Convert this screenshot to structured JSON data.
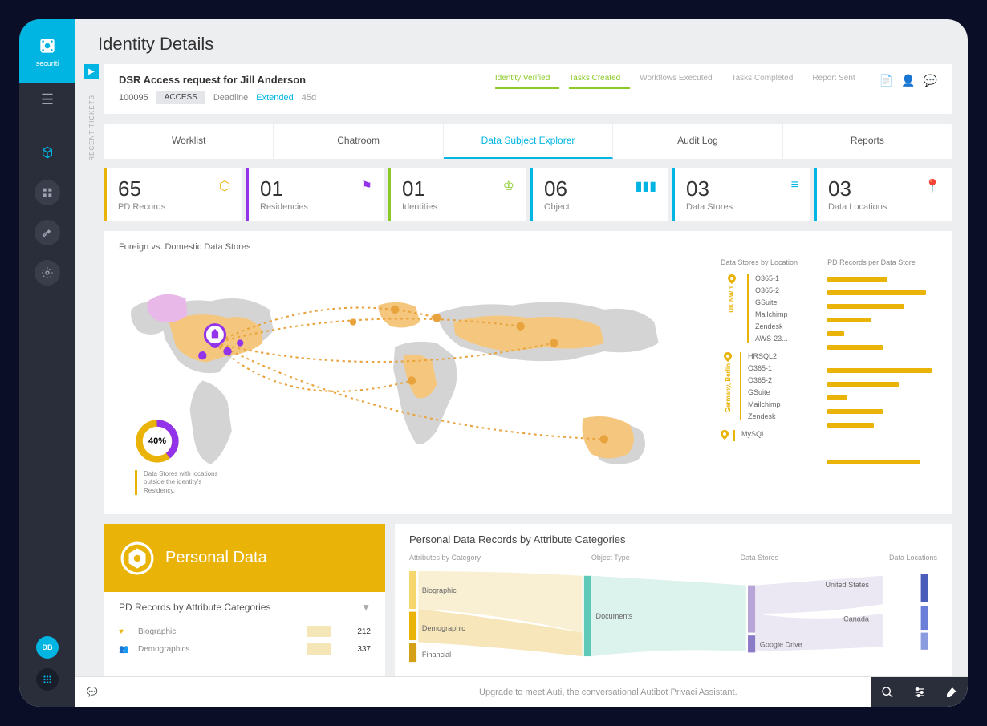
{
  "brand": {
    "name": "securiti",
    "color": "#00b5e2"
  },
  "page_title": "Identity Details",
  "sidebar": {
    "tickets_label": "RECENT TICKETS",
    "avatars": [
      {
        "initials": "DB",
        "color": "#00b5e2"
      },
      {
        "initials": "",
        "color": "#2a2d3a",
        "dots": true
      }
    ]
  },
  "header": {
    "title": "DSR Access request for Jill Anderson",
    "ticket_id": "100095",
    "badge": "ACCESS",
    "deadline_label": "Deadline",
    "deadline_status": "Extended",
    "deadline_days": "45d",
    "steps": [
      {
        "label": "Identity Verified",
        "done": true
      },
      {
        "label": "Tasks Created",
        "done": true
      },
      {
        "label": "Workflows Executed",
        "done": false
      },
      {
        "label": "Tasks Completed",
        "done": false
      },
      {
        "label": "Report Sent",
        "done": false
      }
    ]
  },
  "tabs": [
    "Worklist",
    "Chatroom",
    "Data Subject Explorer",
    "Audit Log",
    "Reports"
  ],
  "active_tab": 2,
  "stats": [
    {
      "value": "65",
      "label": "PD Records",
      "color": "#eab308",
      "icon": "⬡"
    },
    {
      "value": "01",
      "label": "Residencies",
      "color": "#9333ea",
      "icon": "⚑"
    },
    {
      "value": "01",
      "label": "Identities",
      "color": "#8ac926",
      "icon": "♔"
    },
    {
      "value": "06",
      "label": "Object",
      "color": "#00b5e2",
      "icon": "▮▮▮"
    },
    {
      "value": "03",
      "label": "Data Stores",
      "color": "#00b5e2",
      "icon": "≡"
    },
    {
      "value": "03",
      "label": "Data Locations",
      "color": "#00b5e2",
      "icon": "📍"
    }
  ],
  "map": {
    "title": "Foreign vs. Domestic Data Stores",
    "donut": {
      "percent": "40%",
      "value": 40,
      "colors": [
        "#9333ea",
        "#eab308"
      ]
    },
    "donut_caption": "Data Stores with locations outside the identity's Residency.",
    "side_title_1": "Data Stores by Location",
    "side_title_2": "PD Records per Data Store",
    "locations": [
      {
        "name": "UK NW 1",
        "color": "#eab308",
        "stores": [
          {
            "name": "O365-1",
            "bar": 55
          },
          {
            "name": "O365-2",
            "bar": 90
          },
          {
            "name": "GSuite",
            "bar": 70
          },
          {
            "name": "Mailchimp",
            "bar": 40
          },
          {
            "name": "Zendesk",
            "bar": 15
          },
          {
            "name": "AWS-23...",
            "bar": 50
          }
        ]
      },
      {
        "name": "Germany, Berlin",
        "color": "#eab308",
        "stores": [
          {
            "name": "HRSQL2",
            "bar": 95
          },
          {
            "name": "O365-1",
            "bar": 65
          },
          {
            "name": "O365-2",
            "bar": 18
          },
          {
            "name": "GSuite",
            "bar": 50
          },
          {
            "name": "Mailchimp",
            "bar": 42
          },
          {
            "name": "Zendesk",
            "bar": 0
          }
        ]
      },
      {
        "name": "",
        "color": "#eab308",
        "stores": [
          {
            "name": "MySQL",
            "bar": 85
          }
        ]
      }
    ]
  },
  "personal_data": {
    "header": "Personal Data",
    "subtitle": "PD Records by Attribute Categories",
    "rows": [
      {
        "icon": "♥",
        "name": "Biographic",
        "value": "212"
      },
      {
        "icon": "👥",
        "name": "Demographics",
        "value": "337"
      }
    ]
  },
  "sankey": {
    "title": "Personal Data Records by Attribute Categories",
    "headers": [
      "Attributes by Category",
      "Object Type",
      "Data Stores",
      "Data Locations"
    ],
    "col1": [
      {
        "label": "Biographic",
        "color": "#f5d76e"
      },
      {
        "label": "Demographic",
        "color": "#eab308"
      },
      {
        "label": "Financial",
        "color": "#d4a017"
      }
    ],
    "col2": [
      {
        "label": "Documents",
        "color": "#7dd3c0"
      }
    ],
    "col3": [
      {
        "label": "Google Drive",
        "color": "#b8a5d8"
      },
      {
        "label": "",
        "color": "#8b7bc7"
      }
    ],
    "col4": [
      {
        "label": "United States",
        "color": "#4a5db8"
      },
      {
        "label": "Canada",
        "color": "#6b7fd8"
      }
    ]
  },
  "footer": {
    "text": "Upgrade to meet Auti, the conversational Autibot Privaci Assistant."
  },
  "colors": {
    "bg": "#eceef0",
    "card": "#ffffff",
    "accent": "#00b5e2",
    "yellow": "#eab308",
    "purple": "#9333ea",
    "green": "#8ac926"
  }
}
